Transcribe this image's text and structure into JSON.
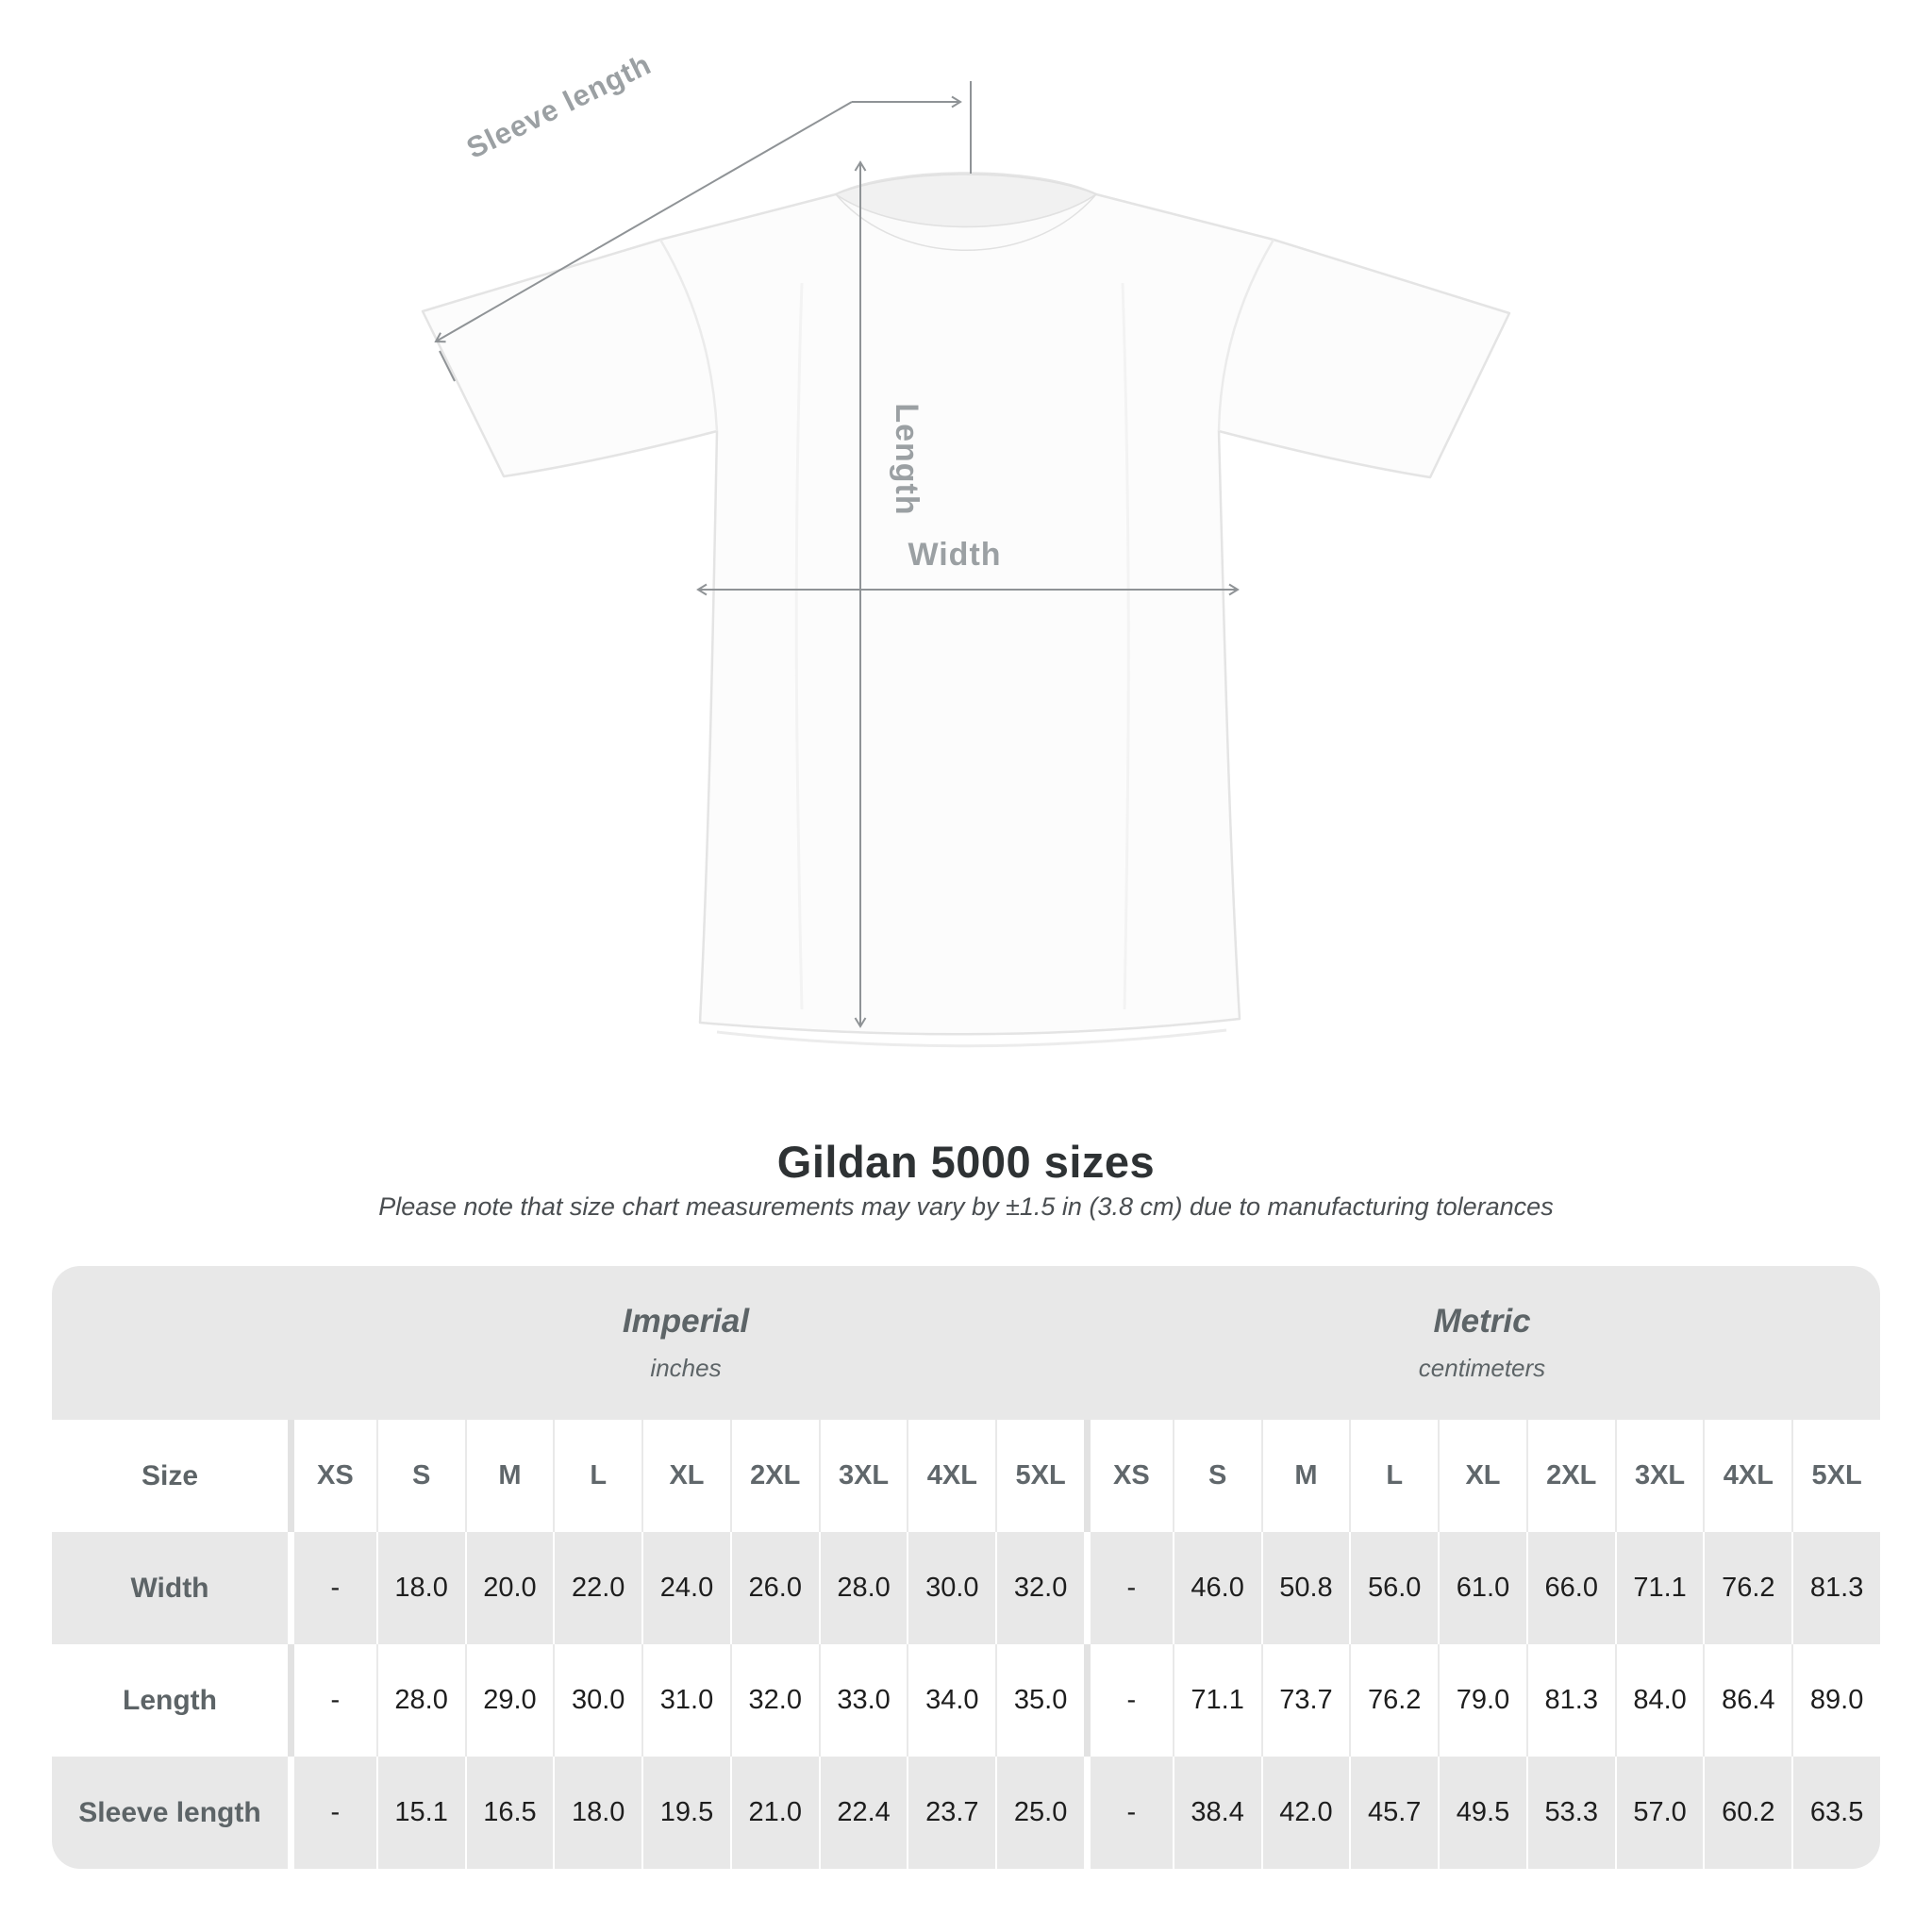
{
  "diagram": {
    "labels": {
      "sleeve_length": "Sleeve length",
      "length": "Length",
      "width": "Width"
    }
  },
  "title": "Gildan 5000 sizes",
  "subtitle": "Please note that size chart measurements may vary by ±1.5 in (3.8 cm) due to manufacturing tolerances",
  "table": {
    "size_header": "Size",
    "unit_groups": [
      {
        "name": "Imperial",
        "unit": "inches"
      },
      {
        "name": "Metric",
        "unit": "centimeters"
      }
    ],
    "sizes": [
      "XS",
      "S",
      "M",
      "L",
      "XL",
      "2XL",
      "3XL",
      "4XL",
      "5XL"
    ],
    "rows": [
      {
        "label": "Width",
        "imperial": [
          "-",
          "18.0",
          "20.0",
          "22.0",
          "24.0",
          "26.0",
          "28.0",
          "30.0",
          "32.0"
        ],
        "metric": [
          "-",
          "46.0",
          "50.8",
          "56.0",
          "61.0",
          "66.0",
          "71.1",
          "76.2",
          "81.3"
        ]
      },
      {
        "label": "Length",
        "imperial": [
          "-",
          "28.0",
          "29.0",
          "30.0",
          "31.0",
          "32.0",
          "33.0",
          "34.0",
          "35.0"
        ],
        "metric": [
          "-",
          "71.1",
          "73.7",
          "76.2",
          "79.0",
          "81.3",
          "84.0",
          "86.4",
          "89.0"
        ]
      },
      {
        "label": "Sleeve length",
        "imperial": [
          "-",
          "15.1",
          "16.5",
          "18.0",
          "19.5",
          "21.0",
          "22.4",
          "23.7",
          "25.0"
        ],
        "metric": [
          "-",
          "38.4",
          "42.0",
          "45.7",
          "49.5",
          "53.3",
          "57.0",
          "60.2",
          "63.5"
        ]
      }
    ]
  },
  "colors": {
    "table_band": "#e8e8e8",
    "row_alt": "#e8e8e8",
    "heading_text": "#5d6467",
    "value_text": "#1e1e1e",
    "arrow": "#8f9396",
    "diagram_label": "#9ba0a3"
  }
}
